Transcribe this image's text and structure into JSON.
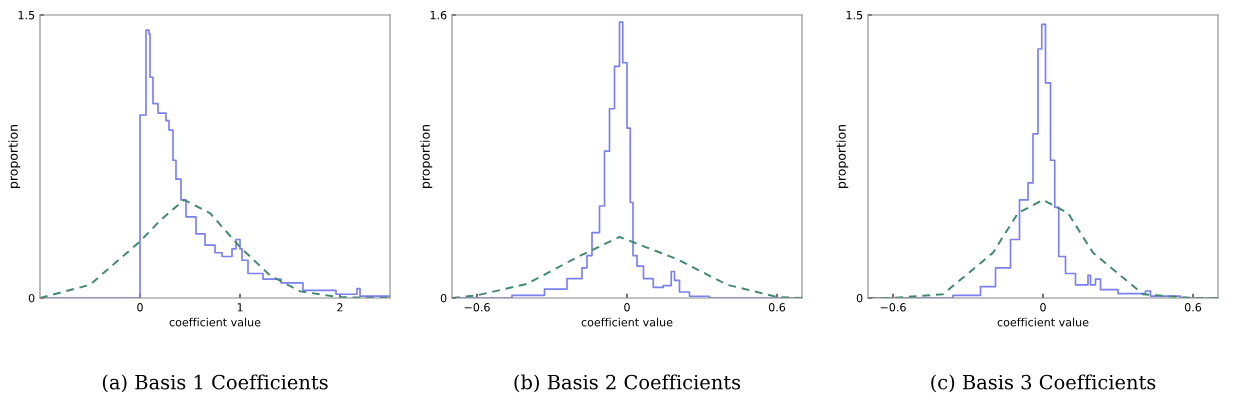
{
  "chart_data": [
    {
      "type": "step",
      "title": "(a) Basis 1 Coefficients",
      "xlabel": "coefficient value",
      "ylabel": "proportion",
      "xlim": [
        -1,
        2.5
      ],
      "ylim": [
        0,
        1.5
      ],
      "xticks": [
        0,
        1,
        2
      ],
      "yticks": [
        0,
        1.5
      ],
      "grid": false,
      "series": [
        {
          "color": "#7b80f0",
          "line_style": "solid",
          "x": [
            -1,
            0,
            0.06,
            0.09,
            0.1,
            0.13,
            0.18,
            0.26,
            0.29,
            0.33,
            0.36,
            0.41,
            0.46,
            0.56,
            0.65,
            0.75,
            0.82,
            0.92,
            0.96,
            1.0,
            1.02,
            1.08,
            1.18,
            1.23,
            1.41,
            1.63,
            1.96,
            2.15,
            2.17,
            2.2,
            2.5
          ],
          "values": [
            0,
            0.97,
            1.42,
            1.4,
            1.17,
            1.03,
            0.98,
            0.94,
            0.89,
            0.73,
            0.63,
            0.52,
            0.43,
            0.34,
            0.28,
            0.24,
            0.22,
            0.26,
            0.31,
            0.26,
            0.2,
            0.13,
            0.13,
            0.1,
            0.08,
            0.04,
            0.02,
            0.02,
            0.05,
            0.01,
            0
          ]
        },
        {
          "type": "line",
          "color": "#3f8a6c",
          "line_style": "dashed",
          "x": [
            -1,
            -0.5,
            0,
            0.2,
            0.44,
            0.7,
            1,
            1.3,
            1.6,
            2,
            2.5
          ],
          "values": [
            0,
            0.07,
            0.3,
            0.41,
            0.52,
            0.45,
            0.27,
            0.12,
            0.035,
            0.004,
            0
          ]
        }
      ]
    },
    {
      "type": "step",
      "title": "(b) Basis 2 Coefficients",
      "xlabel": "coefficient value",
      "ylabel": "proportion",
      "xlim": [
        -0.7,
        0.7
      ],
      "ylim": [
        0,
        1.6
      ],
      "xticks": [
        {
          "value": -0.6,
          "label": "−0.6"
        },
        0,
        0.6
      ],
      "yticks": [
        0,
        1.6
      ],
      "grid": false,
      "series": [
        {
          "color": "#7b80f0",
          "line_style": "solid",
          "x": [
            -0.7,
            -0.46,
            -0.33,
            -0.24,
            -0.18,
            -0.16,
            -0.14,
            -0.11,
            -0.09,
            -0.07,
            -0.05,
            -0.03,
            -0.017,
            0,
            0.013,
            0.024,
            0.04,
            0.066,
            0.105,
            0.145,
            0.177,
            0.19,
            0.21,
            0.25,
            0.33,
            0.7
          ],
          "values": [
            0,
            0.015,
            0.05,
            0.11,
            0.17,
            0.24,
            0.37,
            0.52,
            0.83,
            1.07,
            1.31,
            1.56,
            1.33,
            0.96,
            0.54,
            0.24,
            0.18,
            0.11,
            0.06,
            0.07,
            0.15,
            0.1,
            0.034,
            0.01,
            0,
            0.005
          ]
        },
        {
          "type": "line",
          "color": "#3f8a6c",
          "line_style": "dashed",
          "x": [
            -0.7,
            -0.6,
            -0.4,
            -0.2,
            -0.03,
            0.2,
            0.4,
            0.6,
            0.7
          ],
          "values": [
            0,
            0.015,
            0.08,
            0.23,
            0.345,
            0.22,
            0.075,
            0.006,
            0
          ]
        }
      ]
    },
    {
      "type": "step",
      "title": "(c) Basis 3 Coefficients",
      "xlabel": "coefficient value",
      "ylabel": "proportion",
      "xlim": [
        -0.7,
        0.7
      ],
      "ylim": [
        0,
        1.5
      ],
      "xticks": [
        {
          "value": -0.6,
          "label": "−0.6"
        },
        0,
        0.6
      ],
      "yticks": [
        0,
        1.5
      ],
      "grid": false,
      "series": [
        {
          "color": "#7b80f0",
          "line_style": "solid",
          "x": [
            -0.7,
            -0.36,
            -0.25,
            -0.19,
            -0.13,
            -0.094,
            -0.06,
            -0.04,
            -0.02,
            -0.005,
            0.01,
            0.03,
            0.047,
            0.063,
            0.09,
            0.13,
            0.18,
            0.19,
            0.21,
            0.23,
            0.3,
            0.41,
            0.43,
            0.55,
            0.7
          ],
          "values": [
            0,
            0.014,
            0.06,
            0.16,
            0.31,
            0.52,
            0.61,
            0.87,
            1.32,
            1.45,
            1.14,
            0.73,
            0.48,
            0.22,
            0.13,
            0.07,
            0.12,
            0.07,
            0.1,
            0.044,
            0.023,
            0.037,
            0.01,
            0,
            0
          ]
        },
        {
          "type": "line",
          "color": "#3f8a6c",
          "line_style": "dashed",
          "x": [
            -0.7,
            -0.6,
            -0.4,
            -0.2,
            -0.1,
            0,
            0.1,
            0.2,
            0.4,
            0.6,
            0.7
          ],
          "values": [
            0,
            0,
            0.02,
            0.24,
            0.45,
            0.52,
            0.45,
            0.24,
            0.02,
            0,
            0
          ]
        }
      ]
    }
  ]
}
